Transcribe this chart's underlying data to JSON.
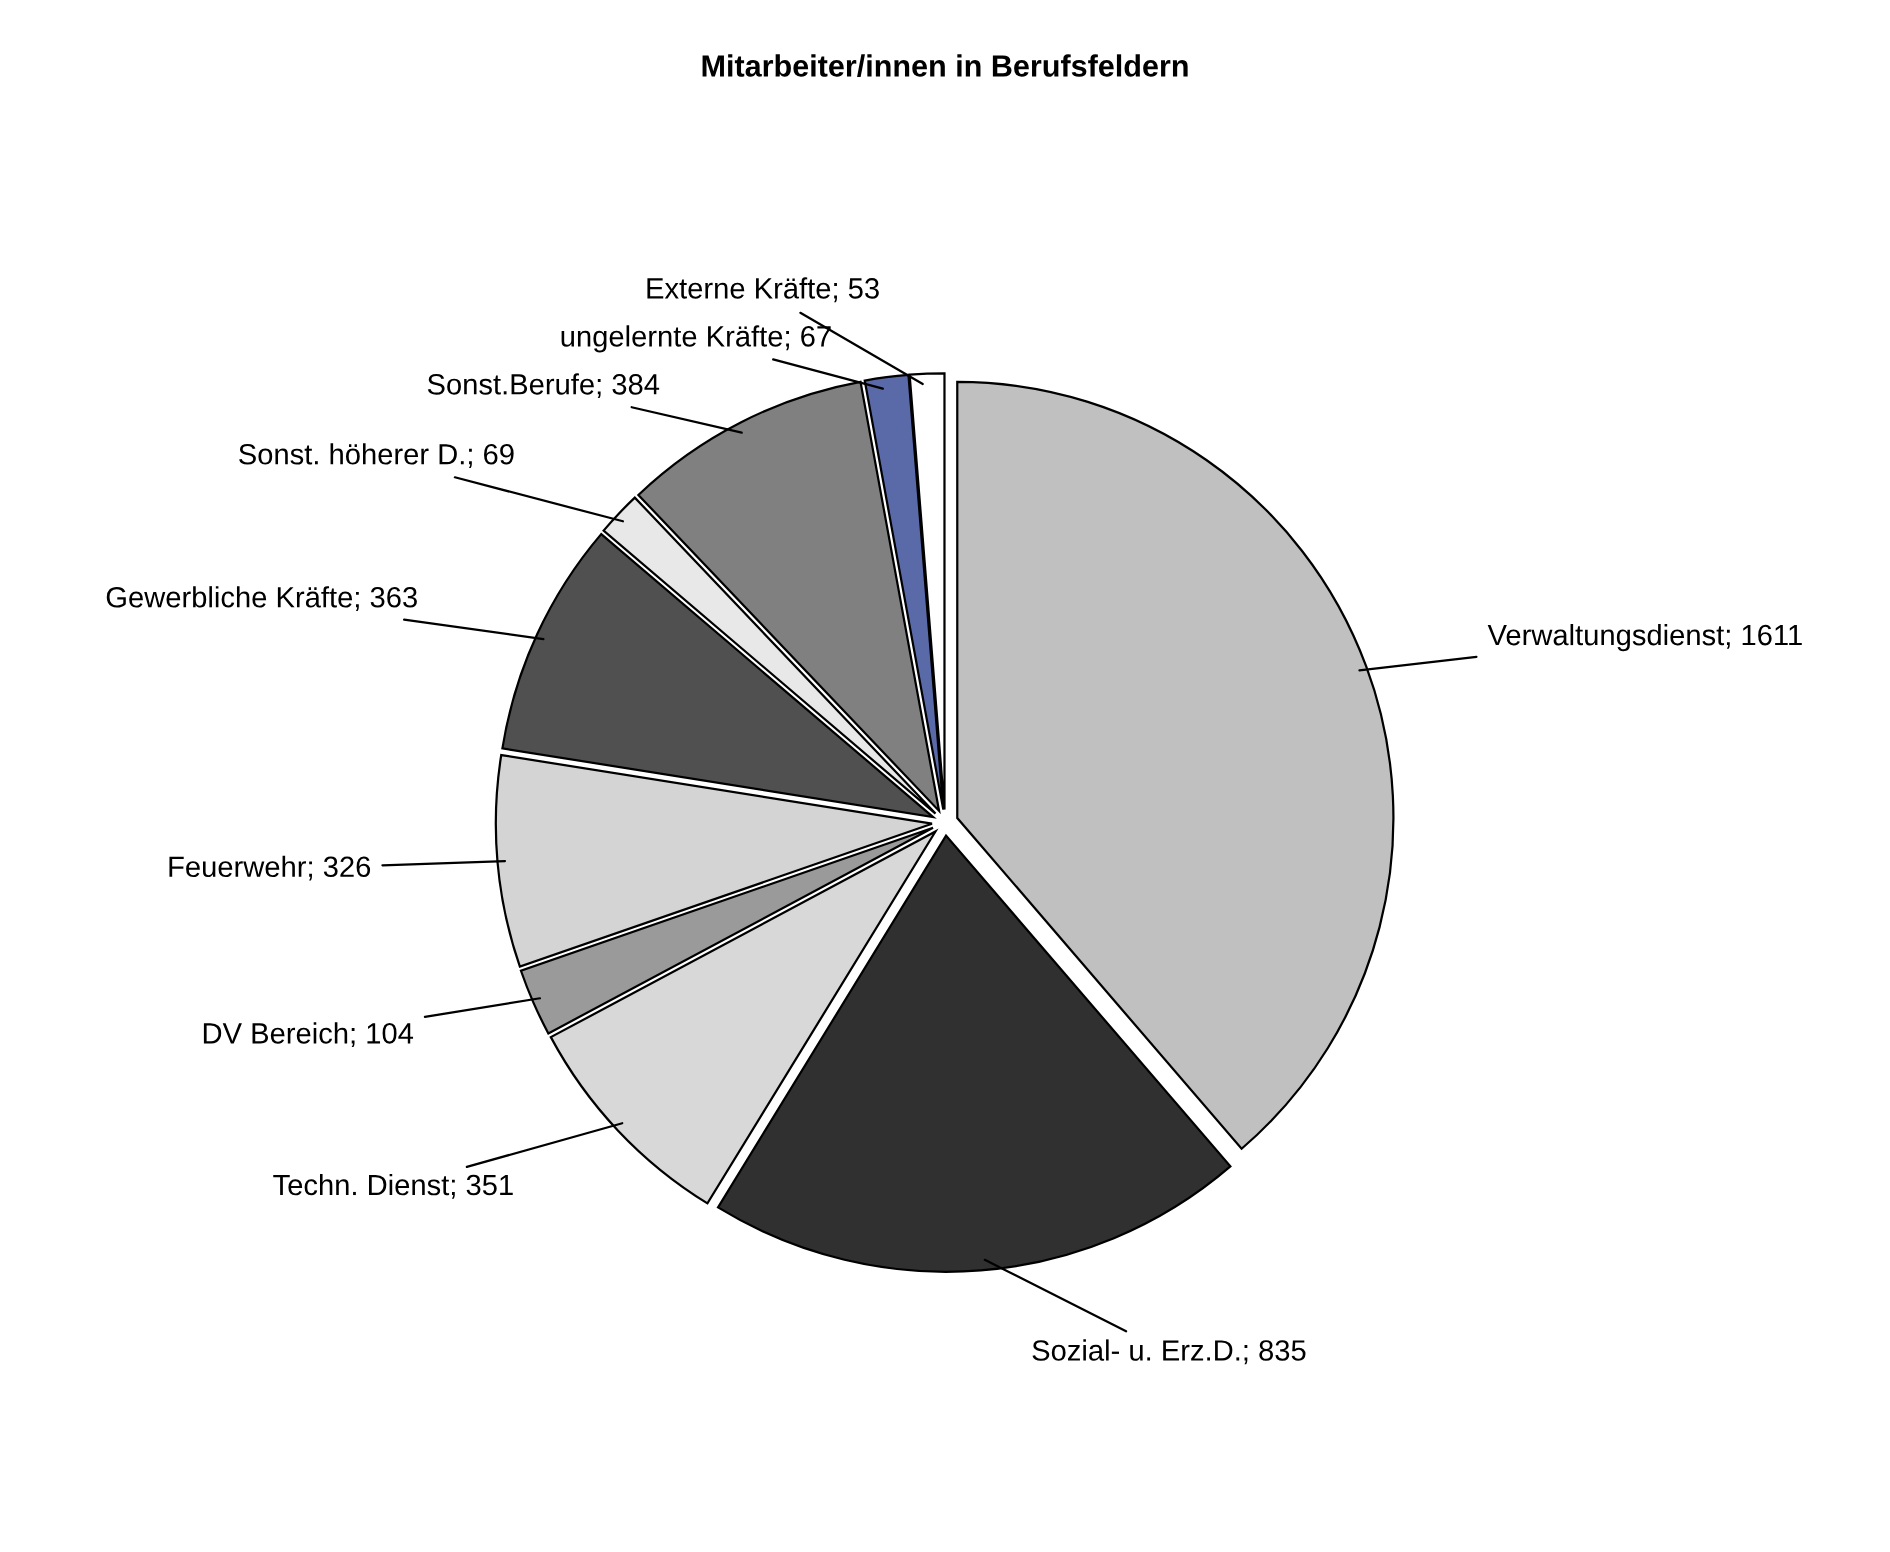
{
  "chart_data": {
    "type": "pie",
    "title": "Mitarbeiter/innen in Berufsfeldern",
    "categories": [
      "Verwaltungsdienst; 1611",
      "Sozial- u. Erz.D.; 835",
      "Techn. Dienst; 351",
      "DV Bereich; 104",
      "Feuerwehr; 326",
      "Gewerbliche Kräfte; 363",
      "Sonst. höherer D.; 69",
      "Sonst.Berufe; 384",
      "ungelernte Kräfte; 67",
      "Externe Kräfte; 53"
    ],
    "values": [
      1611,
      835,
      351,
      104,
      326,
      363,
      69,
      384,
      67,
      53
    ],
    "colors": [
      "#c0c0c0",
      "#303030",
      "#d8d8d8",
      "#9a9a9a",
      "#d4d4d4",
      "#505050",
      "#e8e8e8",
      "#808080",
      "#5a6aa8",
      "#ffffff"
    ],
    "legend": false
  }
}
